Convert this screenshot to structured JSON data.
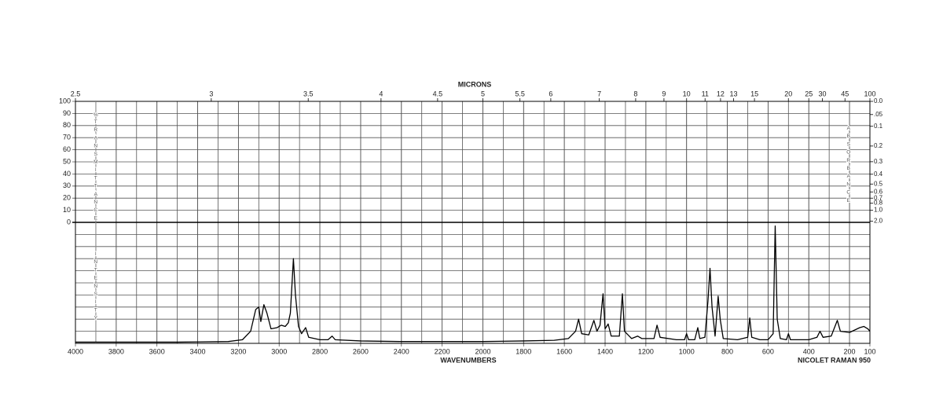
{
  "chart_data": {
    "type": "line",
    "x_label": "WAVENUMBERS",
    "x2_label": "MICRONS",
    "instrument": "NICOLET RAMAN 950",
    "y_label_unit": "%",
    "y_label": "TRANSMITTANCE",
    "y2_label": "ABSORBANCE",
    "intensity_label": "INTENSITY",
    "color": "#000000",
    "xlim": [
      4000,
      100
    ],
    "xticks": [
      4000,
      3800,
      3600,
      3400,
      3200,
      3000,
      2800,
      2600,
      2400,
      2200,
      2000,
      1800,
      1600,
      1400,
      1200,
      1000,
      800,
      600,
      400,
      200,
      100
    ],
    "minor_x_grid_step": 100,
    "x2lim": [
      2.5,
      100
    ],
    "x2ticks": [
      2.5,
      3,
      3.5,
      4,
      4.5,
      5,
      5.5,
      6,
      7,
      8,
      9,
      10,
      11,
      12,
      13,
      15,
      20,
      25,
      30,
      45,
      100
    ],
    "ylim": [
      0,
      100
    ],
    "yticks": [
      100,
      90,
      80,
      70,
      60,
      50,
      40,
      30,
      20,
      10,
      0
    ],
    "y2lim": [
      2.0,
      0.0
    ],
    "y2ticks": [
      {
        "value": 0,
        "label": "0.0"
      },
      {
        "value": 0.05,
        "label": ".05"
      },
      {
        "value": 0.1,
        "label": "0.1"
      },
      {
        "value": 0.2,
        "label": "0.2"
      },
      {
        "value": 0.3,
        "label": "0.3"
      },
      {
        "value": 0.4,
        "label": "0.4"
      },
      {
        "value": 0.5,
        "label": "0.5"
      },
      {
        "value": 0.6,
        "label": "0.6"
      },
      {
        "value": 0.7,
        "label": "0.7"
      },
      {
        "value": 0.8,
        "label": "0.8"
      },
      {
        "value": 1.0,
        "label": "1.0"
      },
      {
        "value": 2.0,
        "label": "2.0"
      }
    ],
    "intensity_lim": [
      0,
      100
    ],
    "intensity_grid_step": 10,
    "x": [
      4000,
      3500,
      3250,
      3180,
      3140,
      3115,
      3100,
      3090,
      3075,
      3060,
      3040,
      3010,
      2990,
      2970,
      2955,
      2945,
      2930,
      2920,
      2905,
      2890,
      2870,
      2855,
      2800,
      2760,
      2740,
      2725,
      2600,
      2400,
      2000,
      1800,
      1650,
      1580,
      1545,
      1530,
      1515,
      1480,
      1455,
      1440,
      1425,
      1410,
      1400,
      1385,
      1370,
      1330,
      1315,
      1305,
      1270,
      1240,
      1220,
      1160,
      1145,
      1130,
      1050,
      1010,
      1000,
      990,
      960,
      945,
      935,
      910,
      895,
      885,
      875,
      860,
      845,
      835,
      820,
      750,
      700,
      690,
      680,
      640,
      600,
      575,
      565,
      555,
      540,
      510,
      500,
      490,
      400,
      360,
      345,
      330,
      290,
      260,
      245,
      200,
      150,
      130,
      110,
      100
    ],
    "values": [
      1,
      1,
      1.5,
      3,
      10,
      28,
      30,
      18,
      32,
      25,
      12,
      13,
      15,
      14,
      17,
      25,
      70,
      40,
      14,
      8,
      13,
      5,
      3,
      3,
      6,
      3,
      2,
      1.5,
      1.5,
      2,
      2.5,
      4,
      10,
      20,
      8,
      7,
      19,
      10,
      15,
      41,
      12,
      16,
      6,
      6,
      41,
      10,
      4,
      6,
      4,
      4,
      15,
      5,
      3,
      3,
      8,
      3,
      3,
      13,
      4,
      5,
      35,
      62,
      30,
      6,
      39,
      20,
      4,
      3,
      5,
      21,
      5,
      3,
      3,
      8,
      97,
      20,
      4,
      3,
      8,
      3,
      3,
      5,
      10,
      5,
      6,
      19,
      10,
      9,
      13,
      14,
      12,
      10
    ]
  }
}
